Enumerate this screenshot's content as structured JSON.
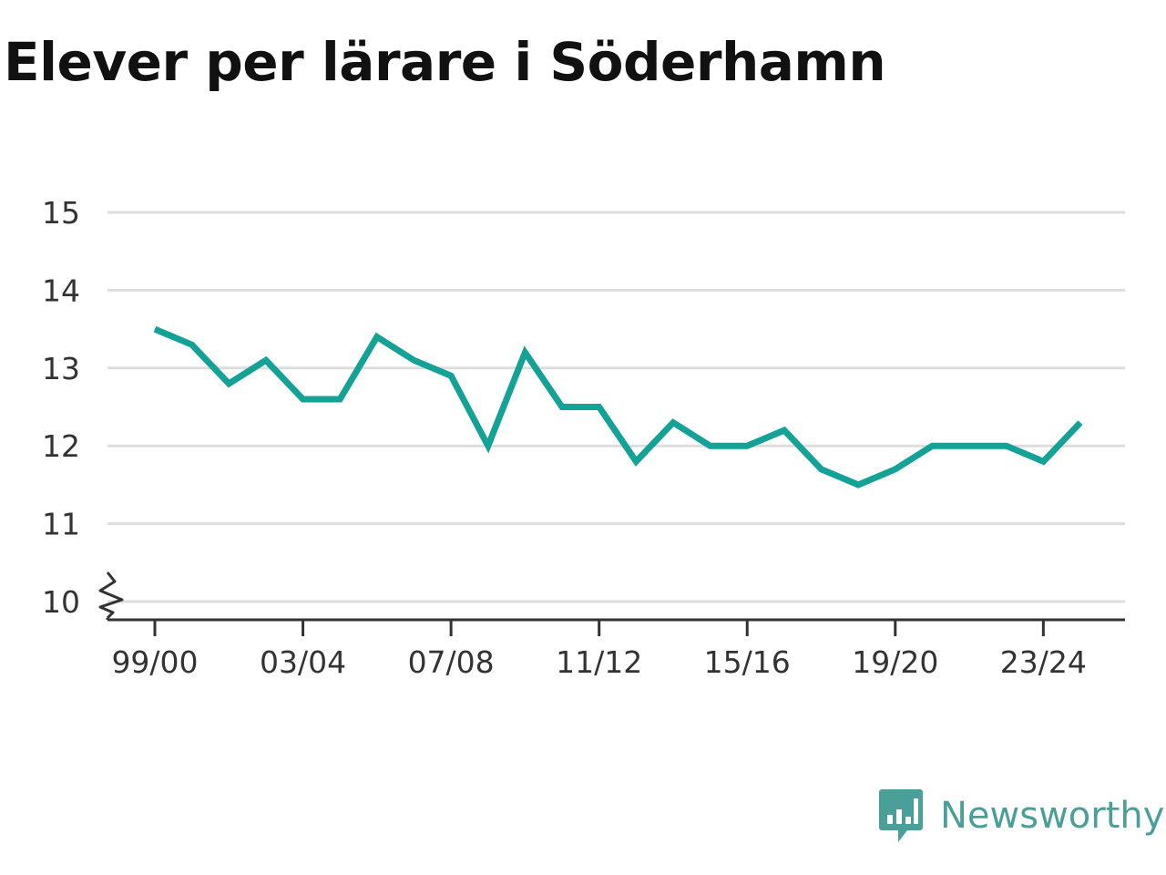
{
  "title": "Elever per lärare i Söderhamn",
  "brand": {
    "name": "Newsworthy",
    "color": "#4a9f98"
  },
  "colors": {
    "line": "#14a196",
    "grid": "#dddddd",
    "axis": "#333333"
  },
  "chart_data": {
    "type": "line",
    "title": "Elever per lärare i Söderhamn",
    "xlabel": "",
    "ylabel": "",
    "x": [
      "99/00",
      "00/01",
      "01/02",
      "02/03",
      "03/04",
      "04/05",
      "05/06",
      "06/07",
      "07/08",
      "08/09",
      "09/10",
      "10/11",
      "11/12",
      "12/13",
      "13/14",
      "14/15",
      "15/16",
      "16/17",
      "17/18",
      "18/19",
      "19/20",
      "20/21",
      "21/22",
      "22/23",
      "23/24",
      "24/25"
    ],
    "series": [
      {
        "values": [
          13.5,
          13.3,
          12.8,
          13.1,
          12.6,
          12.6,
          13.4,
          13.1,
          12.9,
          12.0,
          13.2,
          12.5,
          12.5,
          11.8,
          12.3,
          12.0,
          12.0,
          12.2,
          11.7,
          11.5,
          11.7,
          12.0,
          12.0,
          12.0,
          11.8,
          12.3
        ]
      }
    ],
    "x_tick_labels": [
      "99/00",
      "03/04",
      "07/08",
      "11/12",
      "15/16",
      "19/20",
      "23/24"
    ],
    "y_ticks": [
      10,
      11,
      12,
      13,
      14,
      15
    ],
    "ylim": [
      10,
      15
    ],
    "y_axis_break": true,
    "grid": true,
    "legend": "none"
  }
}
